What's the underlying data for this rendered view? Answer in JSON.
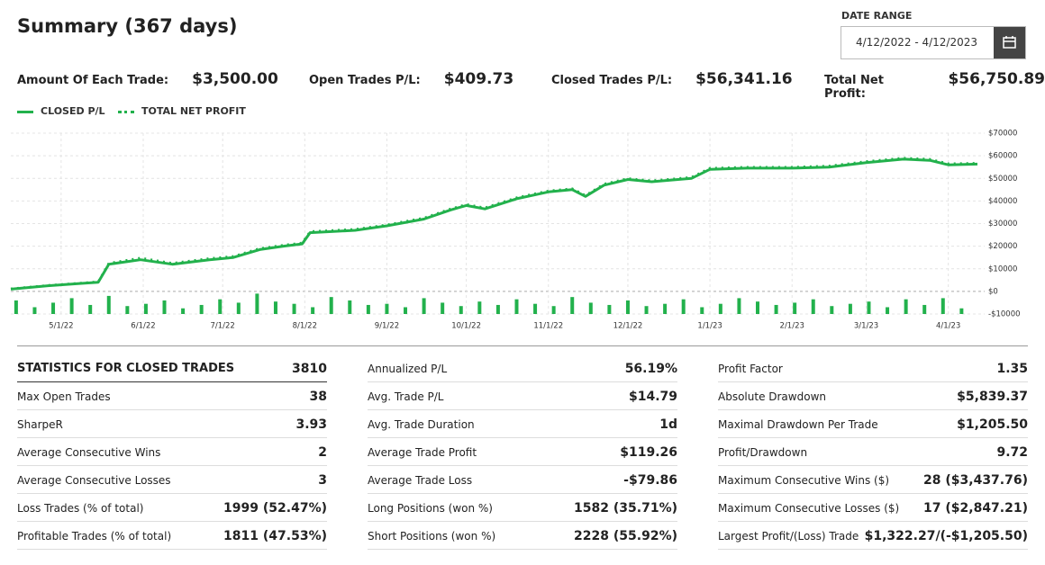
{
  "header": {
    "title": "Summary (367 days)",
    "date_range_label": "DATE RANGE",
    "date_range_value": "4/12/2022 - 4/12/2023"
  },
  "summary": [
    {
      "label": "Amount Of Each Trade:",
      "value": "$3,500.00"
    },
    {
      "label": "Open Trades P/L:",
      "value": "$409.73"
    },
    {
      "label": "Closed Trades P/L:",
      "value": "$56,341.16"
    },
    {
      "label": "Total Net Profit:",
      "value": "$56,750.89"
    }
  ],
  "chart_data": {
    "type": "line",
    "color": "#22b14c",
    "x": [
      "4/12/22",
      "4/26/22",
      "5/8/22",
      "5/15/22",
      "5/19/22",
      "5/31/22",
      "6/12/22",
      "6/26/22",
      "7/5/22",
      "7/15/22",
      "7/24/22",
      "7/31/22",
      "8/3/22",
      "8/20/22",
      "9/1/22",
      "9/15/22",
      "9/25/22",
      "10/1/22",
      "10/8/22",
      "10/20/22",
      "11/1/22",
      "11/10/22",
      "11/15/22",
      "11/22/22",
      "12/1/22",
      "12/10/22",
      "12/25/22",
      "1/1/23",
      "1/15/23",
      "2/1/23",
      "2/15/23",
      "3/1/23",
      "3/15/23",
      "3/25/23",
      "4/1/23",
      "4/12/23"
    ],
    "series": [
      {
        "name": "CLOSED P/L",
        "style": "solid",
        "values": [
          1000,
          2500,
          3500,
          4000,
          12000,
          14000,
          12000,
          14000,
          15000,
          18500,
          20000,
          21000,
          26000,
          27000,
          29000,
          32000,
          36000,
          38000,
          36500,
          41000,
          44000,
          45000,
          42000,
          47000,
          49500,
          48500,
          50000,
          54000,
          54500,
          54500,
          55000,
          57000,
          58500,
          58000,
          56000,
          56300
        ]
      },
      {
        "name": "TOTAL NET PROFIT",
        "style": "dotted",
        "values": [
          1200,
          2700,
          3700,
          4300,
          12500,
          14800,
          12500,
          14600,
          15500,
          19000,
          20500,
          21500,
          26500,
          27500,
          29500,
          32500,
          36500,
          38500,
          37000,
          41500,
          44500,
          45500,
          42500,
          47500,
          50000,
          49000,
          50500,
          54500,
          55000,
          55000,
          55500,
          57500,
          59000,
          58500,
          56500,
          56750
        ]
      }
    ],
    "bars": {
      "color": "#22b14c",
      "x": [
        "4/14/22",
        "4/21/22",
        "4/28/22",
        "5/5/22",
        "5/12/22",
        "5/19/22",
        "5/26/22",
        "6/2/22",
        "6/9/22",
        "6/16/22",
        "6/23/22",
        "6/30/22",
        "7/7/22",
        "7/14/22",
        "7/21/22",
        "7/28/22",
        "8/4/22",
        "8/11/22",
        "8/18/22",
        "8/25/22",
        "9/1/22",
        "9/8/22",
        "9/15/22",
        "9/22/22",
        "9/29/22",
        "10/6/22",
        "10/13/22",
        "10/20/22",
        "10/27/22",
        "11/3/22",
        "11/10/22",
        "11/17/22",
        "11/24/22",
        "12/1/22",
        "12/8/22",
        "12/15/22",
        "12/22/22",
        "12/29/22",
        "1/5/23",
        "1/12/23",
        "1/19/23",
        "1/26/23",
        "2/2/23",
        "2/9/23",
        "2/16/23",
        "2/23/23",
        "3/2/23",
        "3/9/23",
        "3/16/23",
        "3/23/23",
        "3/30/23",
        "4/6/23"
      ],
      "values": [
        -4000,
        -7000,
        -5000,
        -3000,
        -6000,
        -2000,
        -6500,
        -5500,
        -4000,
        -7500,
        -6000,
        -3500,
        -5000,
        -1000,
        -4500,
        -5500,
        -7000,
        -2500,
        -4000,
        -6000,
        -5500,
        -7000,
        -3000,
        -5000,
        -6500,
        -4500,
        -6000,
        -3500,
        -5500,
        -6500,
        -2500,
        -5000,
        -6000,
        -4000,
        -6500,
        -5500,
        -3500,
        -7000,
        -5500,
        -3000,
        -4500,
        -6000,
        -5000,
        -3500,
        -6500,
        -5500,
        -4500,
        -7000,
        -3500,
        -6000,
        -3000,
        -7500
      ]
    },
    "ylim": [
      -10000,
      70000
    ],
    "yticks": [
      {
        "value": 70000,
        "label": "$70000"
      },
      {
        "value": 60000,
        "label": "$60000"
      },
      {
        "value": 50000,
        "label": "$50000"
      },
      {
        "value": 40000,
        "label": "$40000"
      },
      {
        "value": 30000,
        "label": "$30000"
      },
      {
        "value": 20000,
        "label": "$20000"
      },
      {
        "value": 10000,
        "label": "$10000"
      },
      {
        "value": 0,
        "label": "$0"
      },
      {
        "value": -10000,
        "label": "-$10000"
      }
    ],
    "xticks": [
      "5/1/22",
      "6/1/22",
      "7/1/22",
      "8/1/22",
      "9/1/22",
      "10/1/22",
      "11/1/22",
      "12/1/22",
      "1/1/23",
      "2/1/23",
      "3/1/23",
      "4/1/23"
    ],
    "grid": true
  },
  "statistics": {
    "title": "STATISTICS FOR CLOSED TRADES",
    "count": "3810",
    "columns": [
      [
        [
          "Max Open Trades",
          "38"
        ],
        [
          "SharpeR",
          "3.93"
        ],
        [
          "Average Consecutive Wins",
          "2"
        ],
        [
          "Average Consecutive Losses",
          "3"
        ],
        [
          "Loss Trades (% of total)",
          "1999 (52.47%)"
        ],
        [
          "Profitable Trades (% of total)",
          "1811 (47.53%)"
        ]
      ],
      [
        [
          "Annualized P/L",
          "56.19%"
        ],
        [
          "Avg. Trade P/L",
          "$14.79"
        ],
        [
          "Avg. Trade Duration",
          "1d"
        ],
        [
          "Average Trade Profit",
          "$119.26"
        ],
        [
          "Average Trade Loss",
          "-$79.86"
        ],
        [
          "Long Positions (won %)",
          "1582 (35.71%)"
        ],
        [
          "Short Positions (won %)",
          "2228 (55.92%)"
        ]
      ],
      [
        [
          "Profit Factor",
          "1.35"
        ],
        [
          "Absolute Drawdown",
          "$5,839.37"
        ],
        [
          "Maximal Drawdown Per Trade",
          "$1,205.50"
        ],
        [
          "Profit/Drawdown",
          "9.72"
        ],
        [
          "Maximum Consecutive Wins ($)",
          "28 ($3,437.76)"
        ],
        [
          "Maximum Consecutive Losses ($)",
          "17 ($2,847.21)"
        ],
        [
          "Largest Profit/(Loss) Trade",
          "$1,322.27/(-$1,205.50)"
        ]
      ]
    ]
  }
}
